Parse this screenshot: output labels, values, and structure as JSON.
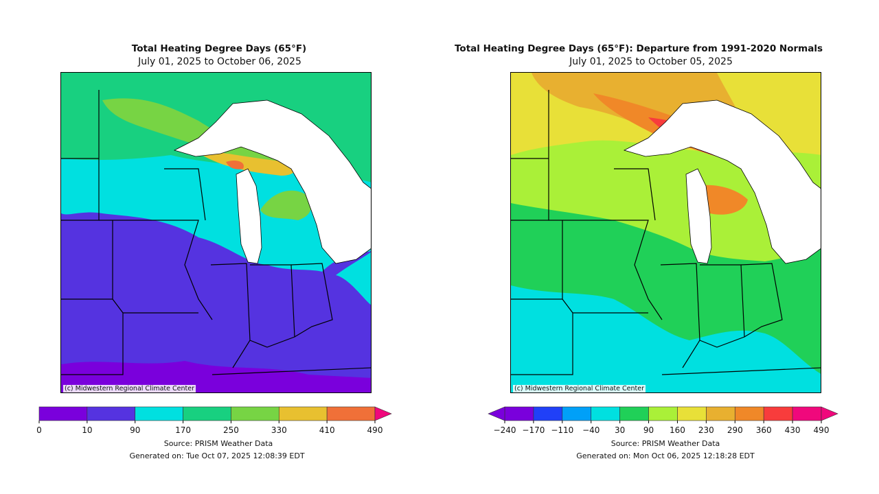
{
  "left": {
    "title": "Total Heating Degree Days (65°F)",
    "subtitle": "July 01, 2025 to October 06, 2025",
    "credit": "(c) Midwestern Regional Climate Center",
    "source": "Source: PRISM Weather Data",
    "generated": "Generated on: Tue Oct 07, 2025 12:08:39 EDT",
    "legend": {
      "ticks": [
        "0",
        "10",
        "90",
        "170",
        "250",
        "330",
        "410",
        "490"
      ],
      "colors": [
        "#7a00dc",
        "#5533e0",
        "#00e0e0",
        "#18d080",
        "#77d444",
        "#e8c030",
        "#f07038"
      ],
      "extend_max_color": "#f0087c",
      "extend_min_color": null
    }
  },
  "right": {
    "title": "Total Heating Degree Days (65°F): Departure from 1991-2020 Normals",
    "subtitle": "July 01, 2025 to October 05, 2025",
    "credit": "(c) Midwestern Regional Climate Center",
    "source": "Source: PRISM Weather Data",
    "generated": "Generated on: Mon Oct 06, 2025 12:18:28 EDT",
    "legend": {
      "ticks": [
        "−240",
        "−170",
        "−110",
        "−40",
        "30",
        "90",
        "160",
        "230",
        "290",
        "360",
        "430",
        "490"
      ],
      "colors": [
        "#7a00dc",
        "#2040f8",
        "#00a0f8",
        "#00e0e0",
        "#20d058",
        "#aaf038",
        "#e8e038",
        "#e8b030",
        "#f08828",
        "#f83c3c",
        "#f0087c"
      ],
      "extend_max_color": "#f0087c",
      "extend_min_color": "#7a00dc"
    }
  }
}
